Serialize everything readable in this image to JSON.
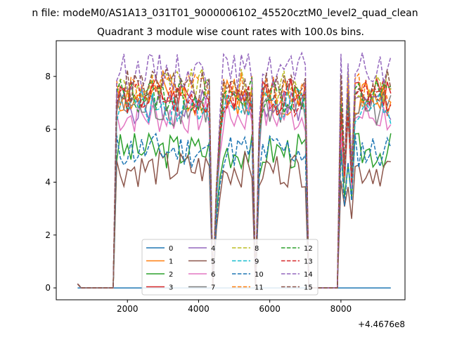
{
  "figure": {
    "suptitle": "n file: modeM0/AS1A13_031T01_9000006102_45520cztM0_level2_quad_clean",
    "title": "Quadrant 3 module wise count rates with 100.0s bins."
  },
  "chart_data": {
    "type": "line",
    "title": "Quadrant 3 module wise count rates with 100.0s bins.",
    "xlabel": "",
    "ylabel": "",
    "x_offset_label": "+4.4676e8",
    "xlim": [
      0,
      9800
    ],
    "ylim": [
      -0.45,
      9.35
    ],
    "xticks": [
      2000,
      4000,
      6000,
      8000
    ],
    "yticks": [
      0,
      2,
      4,
      6,
      8
    ],
    "grid": false,
    "legend_position": "lower center",
    "legend_columns": 4,
    "x_range": [
      600,
      9400
    ],
    "active_intervals": [
      [
        1700,
        4300
      ],
      [
        4500,
        5500
      ],
      [
        5650,
        7000
      ],
      [
        8000,
        9400
      ]
    ],
    "series": [
      {
        "name": "0",
        "color": "#1f77b4",
        "dash": "solid",
        "level": 0.0,
        "seed": 1
      },
      {
        "name": "1",
        "color": "#ff7f0e",
        "dash": "solid",
        "level": 7.2,
        "seed": 2
      },
      {
        "name": "2",
        "color": "#2ca02c",
        "dash": "solid",
        "level": 5.2,
        "seed": 3
      },
      {
        "name": "3",
        "color": "#d62728",
        "dash": "solid",
        "level": 7.3,
        "seed": 4
      },
      {
        "name": "4",
        "color": "#9467bd",
        "dash": "solid",
        "level": 6.9,
        "seed": 5
      },
      {
        "name": "5",
        "color": "#8c564b",
        "dash": "solid",
        "level": 4.5,
        "seed": 6
      },
      {
        "name": "6",
        "color": "#e377c2",
        "dash": "solid",
        "level": 6.5,
        "seed": 7
      },
      {
        "name": "7",
        "color": "#7f7f7f",
        "dash": "solid",
        "level": 6.8,
        "seed": 8
      },
      {
        "name": "8",
        "color": "#bcbd22",
        "dash": "dashed",
        "level": 7.6,
        "seed": 9
      },
      {
        "name": "9",
        "color": "#17becf",
        "dash": "dashed",
        "level": 6.9,
        "seed": 10
      },
      {
        "name": "10",
        "color": "#1f77b4",
        "dash": "dashed",
        "level": 5.2,
        "seed": 11
      },
      {
        "name": "11",
        "color": "#ff7f0e",
        "dash": "dashed",
        "level": 7.5,
        "seed": 12
      },
      {
        "name": "12",
        "color": "#2ca02c",
        "dash": "dashed",
        "level": 7.3,
        "seed": 13
      },
      {
        "name": "13",
        "color": "#d62728",
        "dash": "dashed",
        "level": 7.2,
        "seed": 14
      },
      {
        "name": "14",
        "color": "#9467bd",
        "dash": "dashed",
        "level": 8.2,
        "seed": 15
      },
      {
        "name": "15",
        "color": "#8c564b",
        "dash": "dashed",
        "level": 7.6,
        "seed": 16
      }
    ]
  }
}
